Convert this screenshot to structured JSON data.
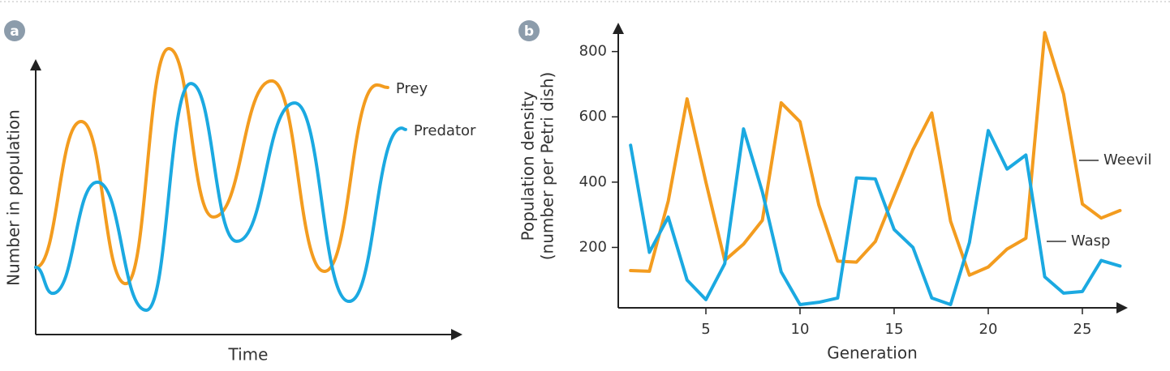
{
  "chart_data": [
    {
      "type": "line",
      "panel_label": "a",
      "smooth": true,
      "y_label": "Number in population",
      "x_label": "Time",
      "xlim": [
        0,
        100
      ],
      "ylim": [
        0,
        100
      ],
      "series": [
        {
          "name": "Prey",
          "color": "#f39c1f",
          "x": [
            0,
            10.7,
            21.2,
            31.3,
            41.8,
            55.5,
            67.9,
            80.3,
            82.8
          ],
          "values": [
            23.5,
            74.5,
            17.8,
            100,
            41.1,
            88.7,
            22.1,
            87.3,
            86.4
          ]
        },
        {
          "name": "Predator",
          "color": "#1ba9e1",
          "x": [
            0,
            4,
            14.5,
            26,
            36.5,
            47.3,
            60.9,
            73.7,
            86.1,
            87
          ],
          "values": [
            23.5,
            14.4,
            53.3,
            8.5,
            87.8,
            32.6,
            81,
            11.6,
            72.2,
            71.7
          ]
        }
      ]
    },
    {
      "type": "line",
      "panel_label": "b",
      "y_label": [
        "Population density",
        "(number per Petri dish)"
      ],
      "x_label": "Generation",
      "xlim": [
        0.3,
        27.5
      ],
      "ylim": [
        15,
        880
      ],
      "xticks": [
        5,
        10,
        15,
        20,
        25
      ],
      "yticks": [
        200,
        400,
        600,
        800
      ],
      "x": [
        1,
        2,
        3,
        4,
        5,
        6,
        7,
        8,
        9,
        10,
        11,
        12,
        13,
        14,
        15,
        16,
        17,
        18,
        19,
        20,
        21,
        22,
        23,
        24,
        25,
        26,
        27
      ],
      "series": [
        {
          "name": "Weevil",
          "color": "#f39c1f",
          "values": [
            129,
            127,
            342,
            655,
            400,
            160,
            210,
            283,
            643,
            585,
            330,
            158,
            155,
            218,
            360,
            500,
            612,
            280,
            115,
            140,
            195,
            228,
            858,
            670,
            333,
            290,
            313
          ]
        },
        {
          "name": "Wasp",
          "color": "#1ba9e1",
          "values": [
            513,
            185,
            293,
            100,
            40,
            150,
            563,
            370,
            125,
            25,
            32,
            45,
            413,
            410,
            255,
            200,
            45,
            25,
            215,
            558,
            440,
            483,
            110,
            60,
            65,
            160,
            143
          ]
        }
      ]
    }
  ]
}
